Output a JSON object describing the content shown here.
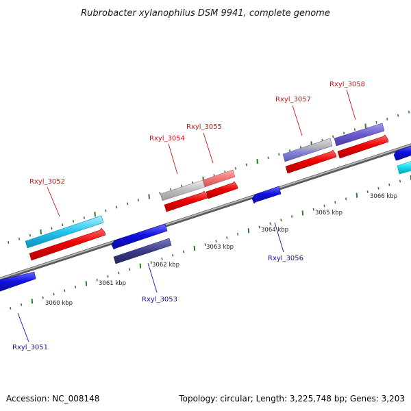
{
  "title": "Rubrobacter xylanophilus DSM 9941, complete genome",
  "footer": {
    "accession": "Accession: NC_008148",
    "summary": "Topology: circular; Length: 3,225,748 bp; Genes: 3,203"
  },
  "colors": {
    "backbone": "#8a8a8a",
    "tick": "#2a7a2a",
    "label_forward": "#cc1111",
    "label_reverse": "#1111aa"
  },
  "scale": {
    "ticks": [
      {
        "label": "3060 kbp"
      },
      {
        "label": "3061 kbp"
      },
      {
        "label": "3062 kbp"
      },
      {
        "label": "3063 kbp"
      },
      {
        "label": "3064 kbp"
      },
      {
        "label": "3065 kbp"
      },
      {
        "label": "3066 kbp"
      }
    ]
  },
  "genes": [
    {
      "name": "Rxyl_3051",
      "strand": "reverse",
      "color": "#1515dd"
    },
    {
      "name": "Rxyl_3052",
      "strand": "forward",
      "color": "#33ccee"
    },
    {
      "name": "Rxyl_3053",
      "strand": "reverse",
      "color": "#3a3a88"
    },
    {
      "name": "Rxyl_3054",
      "strand": "forward",
      "color": "#bdbdbd"
    },
    {
      "name": "Rxyl_3055",
      "strand": "forward",
      "color": "#ee7777"
    },
    {
      "name": "Rxyl_3056",
      "strand": "reverse",
      "color": "#1515dd"
    },
    {
      "name": "Rxyl_3057",
      "strand": "forward",
      "color": "#9a9ad8"
    },
    {
      "name": "Rxyl_3058",
      "strand": "forward",
      "color": "#6a5acd"
    }
  ]
}
